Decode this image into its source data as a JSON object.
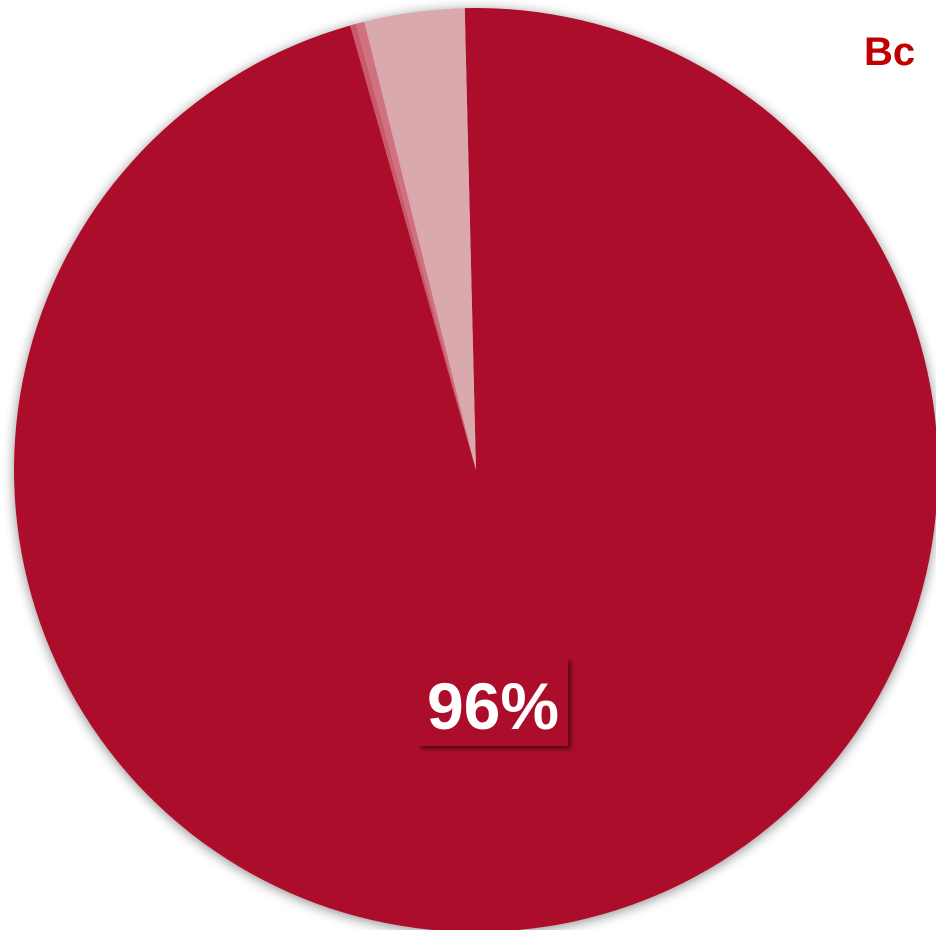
{
  "chart_data": {
    "type": "pie",
    "start_angle_deg": -1.4,
    "direction": "clockwise",
    "series": [
      {
        "values": [
          96,
          0.2,
          0.3,
          3.5
        ],
        "colors": [
          "#ab0c2c",
          "#c95a6c",
          "#d1707f",
          "#d9a9ae"
        ],
        "data_labels": [
          "96%",
          "",
          "",
          ""
        ]
      }
    ],
    "legend": {
      "position": "top-right",
      "visible_text": "Вс"
    },
    "legend_color": "#c00000",
    "shadow": true
  }
}
